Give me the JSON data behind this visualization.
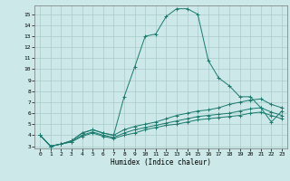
{
  "xlabel": "Humidex (Indice chaleur)",
  "ylabel": "",
  "background_color": "#cce8e8",
  "grid_color": "#aacccc",
  "line_color": "#1a7a6e",
  "xlim": [
    -0.5,
    23.5
  ],
  "ylim": [
    2.8,
    15.8
  ],
  "yticks": [
    3,
    4,
    5,
    6,
    7,
    8,
    9,
    10,
    11,
    12,
    13,
    14,
    15
  ],
  "xticks": [
    0,
    1,
    2,
    3,
    4,
    5,
    6,
    7,
    8,
    9,
    10,
    11,
    12,
    13,
    14,
    15,
    16,
    17,
    18,
    19,
    20,
    21,
    22,
    23
  ],
  "lines": [
    {
      "x": [
        0,
        1,
        2,
        3,
        4,
        5,
        6,
        7,
        8,
        9,
        10,
        11,
        12,
        13,
        14,
        15,
        16,
        17,
        18,
        19,
        20,
        21,
        22,
        23
      ],
      "y": [
        4.0,
        3.0,
        3.2,
        3.5,
        4.2,
        4.5,
        4.2,
        4.0,
        7.5,
        10.2,
        13.0,
        13.2,
        14.8,
        15.5,
        15.5,
        15.0,
        10.8,
        9.2,
        8.5,
        7.5,
        7.5,
        6.5,
        5.2,
        6.2
      ]
    },
    {
      "x": [
        0,
        1,
        2,
        3,
        4,
        5,
        6,
        7,
        8,
        9,
        10,
        11,
        12,
        13,
        14,
        15,
        16,
        17,
        18,
        19,
        20,
        21,
        22,
        23
      ],
      "y": [
        4.0,
        3.0,
        3.2,
        3.5,
        4.2,
        4.5,
        4.2,
        4.0,
        4.5,
        4.8,
        5.0,
        5.2,
        5.5,
        5.8,
        6.0,
        6.2,
        6.3,
        6.5,
        6.8,
        7.0,
        7.2,
        7.3,
        6.8,
        6.5
      ]
    },
    {
      "x": [
        0,
        1,
        2,
        3,
        4,
        5,
        6,
        7,
        8,
        9,
        10,
        11,
        12,
        13,
        14,
        15,
        16,
        17,
        18,
        19,
        20,
        21,
        22,
        23
      ],
      "y": [
        4.0,
        3.0,
        3.2,
        3.4,
        4.0,
        4.3,
        4.0,
        3.8,
        4.2,
        4.5,
        4.7,
        4.9,
        5.1,
        5.3,
        5.5,
        5.7,
        5.8,
        5.9,
        6.0,
        6.2,
        6.4,
        6.5,
        6.1,
        5.8
      ]
    },
    {
      "x": [
        0,
        1,
        2,
        3,
        4,
        5,
        6,
        7,
        8,
        9,
        10,
        11,
        12,
        13,
        14,
        15,
        16,
        17,
        18,
        19,
        20,
        21,
        22,
        23
      ],
      "y": [
        4.0,
        3.0,
        3.2,
        3.4,
        3.9,
        4.2,
        3.9,
        3.7,
        4.0,
        4.2,
        4.5,
        4.7,
        4.9,
        5.0,
        5.2,
        5.4,
        5.5,
        5.6,
        5.7,
        5.8,
        6.0,
        6.1,
        5.8,
        5.5
      ]
    }
  ]
}
